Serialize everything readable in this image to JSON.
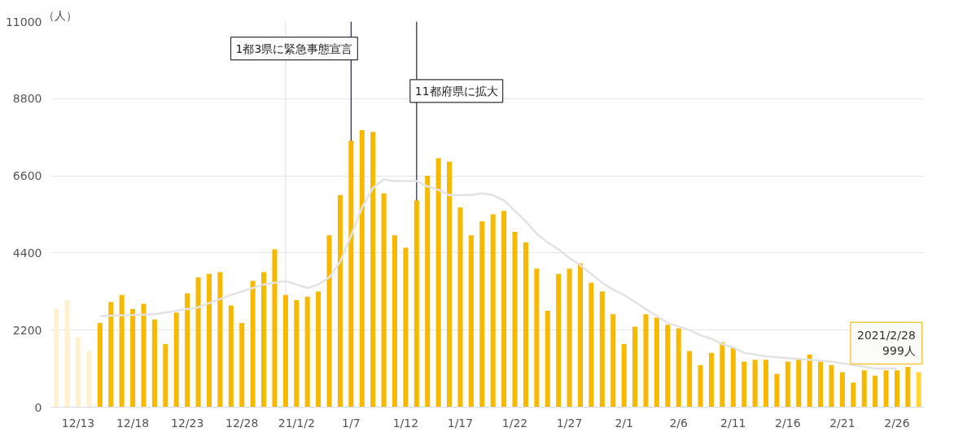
{
  "chart_data": {
    "type": "bar",
    "ylabel": "（人）",
    "x": [
      "2020-12-11",
      "2020-12-12",
      "2020-12-13",
      "2020-12-14",
      "2020-12-15",
      "2020-12-16",
      "2020-12-17",
      "2020-12-18",
      "2020-12-19",
      "2020-12-20",
      "2020-12-21",
      "2020-12-22",
      "2020-12-23",
      "2020-12-24",
      "2020-12-25",
      "2020-12-26",
      "2020-12-27",
      "2020-12-28",
      "2020-12-29",
      "2020-12-30",
      "2020-12-31",
      "2021-01-01",
      "2021-01-02",
      "2021-01-03",
      "2021-01-04",
      "2021-01-05",
      "2021-01-06",
      "2021-01-07",
      "2021-01-08",
      "2021-01-09",
      "2021-01-10",
      "2021-01-11",
      "2021-01-12",
      "2021-01-13",
      "2021-01-14",
      "2021-01-15",
      "2021-01-16",
      "2021-01-17",
      "2021-01-18",
      "2021-01-19",
      "2021-01-20",
      "2021-01-21",
      "2021-01-22",
      "2021-01-23",
      "2021-01-24",
      "2021-01-25",
      "2021-01-26",
      "2021-01-27",
      "2021-01-28",
      "2021-01-29",
      "2021-01-30",
      "2021-01-31",
      "2021-02-01",
      "2021-02-02",
      "2021-02-03",
      "2021-02-04",
      "2021-02-05",
      "2021-02-06",
      "2021-02-07",
      "2021-02-08",
      "2021-02-09",
      "2021-02-10",
      "2021-02-11",
      "2021-02-12",
      "2021-02-13",
      "2021-02-14",
      "2021-02-15",
      "2021-02-16",
      "2021-02-17",
      "2021-02-18",
      "2021-02-19",
      "2021-02-20",
      "2021-02-21",
      "2021-02-22",
      "2021-02-23",
      "2021-02-24",
      "2021-02-25",
      "2021-02-26",
      "2021-02-27",
      "2021-02-28"
    ],
    "series": [
      {
        "colors": [
          "#fdf1cf",
          "#fdf1cf",
          "#fdf1cf",
          "#fdf1cf",
          "#f7b800",
          "#f7b800",
          "#f7b800",
          "#f7b800",
          "#f7b800",
          "#f7b800",
          "#f7b800",
          "#f7b800",
          "#f7b800",
          "#f7b800",
          "#f7b800",
          "#f7b800",
          "#f7b800",
          "#f7b800",
          "#f7b800",
          "#f7b800",
          "#f7b800",
          "#f7b800",
          "#f7b800",
          "#f7b800",
          "#f7b800",
          "#f7b800",
          "#f7b800",
          "#f7b800",
          "#f7b800",
          "#f7b800",
          "#f7b800",
          "#f7b800",
          "#f7b800",
          "#f7b800",
          "#f7b800",
          "#f7b800",
          "#f7b800",
          "#f7b800",
          "#f7b800",
          "#f7b800",
          "#f7b800",
          "#f7b800",
          "#f7b800",
          "#f7b800",
          "#f7b800",
          "#f7b800",
          "#f7b800",
          "#f7b800",
          "#f7b800",
          "#f7b800",
          "#f7b800",
          "#f7b800",
          "#f7b800",
          "#f7b800",
          "#f7b800",
          "#f7b800",
          "#f7b800",
          "#f7b800",
          "#f7b800",
          "#f7b800",
          "#f7b800",
          "#f7b800",
          "#f7b800",
          "#f7b800",
          "#f7b800",
          "#f7b800",
          "#f7b800",
          "#f7b800",
          "#f7b800",
          "#f7b800",
          "#f7b800",
          "#f7b800",
          "#f7b800",
          "#f7b800",
          "#f7b800",
          "#f7b800",
          "#f7b800",
          "#f7b800",
          "#f7b800",
          "#fdd835"
        ],
        "values": [
          2800,
          3050,
          2000,
          1600,
          2400,
          3000,
          3200,
          2800,
          2950,
          2500,
          1800,
          2700,
          3250,
          3700,
          3800,
          3850,
          2900,
          2400,
          3600,
          3850,
          4500,
          3200,
          3050,
          3150,
          3300,
          4900,
          6050,
          7600,
          7900,
          7850,
          6100,
          4900,
          4550,
          5900,
          6600,
          7100,
          7000,
          5700,
          4900,
          5300,
          5500,
          5600,
          5000,
          4700,
          3950,
          2750,
          3800,
          3950,
          4100,
          3550,
          3300,
          2650,
          1800,
          2300,
          2650,
          2550,
          2350,
          2250,
          1600,
          1200,
          1550,
          1850,
          1700,
          1300,
          1350,
          1350,
          950,
          1300,
          1400,
          1500,
          1300,
          1200,
          1000,
          700,
          1050,
          900,
          1050,
          1050,
          1150,
          999
        ]
      },
      {
        "type": "line",
        "color": "#e3e3e3",
        "x": [
          "2020-12-15",
          "2020-12-20",
          "2020-12-24",
          "2020-12-27",
          "2020-12-30",
          "2021-01-01",
          "2021-01-03",
          "2021-01-04",
          "2021-01-05",
          "2021-01-06",
          "2021-01-07",
          "2021-01-08",
          "2021-01-09",
          "2021-01-10",
          "2021-01-11",
          "2021-01-13",
          "2021-01-14",
          "2021-01-15",
          "2021-01-16",
          "2021-01-17",
          "2021-01-18",
          "2021-01-19",
          "2021-01-20",
          "2021-01-21",
          "2021-01-22",
          "2021-01-23",
          "2021-01-24",
          "2021-01-25",
          "2021-01-26",
          "2021-01-27",
          "2021-01-28",
          "2021-01-29",
          "2021-01-30",
          "2021-01-31",
          "2021-02-01",
          "2021-02-02",
          "2021-02-03",
          "2021-02-04",
          "2021-02-05",
          "2021-02-06",
          "2021-02-07",
          "2021-02-08",
          "2021-02-09",
          "2021-02-10",
          "2021-02-11",
          "2021-02-12",
          "2021-02-14",
          "2021-02-16",
          "2021-02-18",
          "2021-02-20",
          "2021-02-22",
          "2021-02-24",
          "2021-02-26"
        ],
        "values": [
          2600,
          2650,
          2850,
          3200,
          3500,
          3600,
          3400,
          3500,
          3700,
          4150,
          4900,
          5700,
          6250,
          6500,
          6450,
          6450,
          6300,
          6200,
          6050,
          6050,
          6050,
          6100,
          6050,
          5900,
          5600,
          5300,
          4950,
          4700,
          4500,
          4250,
          4050,
          3800,
          3550,
          3350,
          3200,
          3000,
          2800,
          2600,
          2400,
          2300,
          2200,
          2050,
          1950,
          1800,
          1700,
          1550,
          1450,
          1400,
          1350,
          1300,
          1200,
          1100,
          1100
        ]
      }
    ],
    "xlim": [
      "2020-12-10T12:00",
      "2021-02-28T12:00"
    ],
    "xticks": [
      {
        "value": "2020-12-13",
        "label": "12/13"
      },
      {
        "value": "2020-12-18",
        "label": "12/18"
      },
      {
        "value": "2020-12-23",
        "label": "12/23"
      },
      {
        "value": "2020-12-28",
        "label": "12/28"
      },
      {
        "value": "2021-01-02",
        "label": "21/1/2"
      },
      {
        "value": "2021-01-07",
        "label": "1/7"
      },
      {
        "value": "2021-01-12",
        "label": "1/12"
      },
      {
        "value": "2021-01-17",
        "label": "1/17"
      },
      {
        "value": "2021-01-22",
        "label": "1/22"
      },
      {
        "value": "2021-01-27",
        "label": "1/27"
      },
      {
        "value": "2021-02-01",
        "label": "2/1"
      },
      {
        "value": "2021-02-06",
        "label": "2/6"
      },
      {
        "value": "2021-02-11",
        "label": "2/11"
      },
      {
        "value": "2021-02-16",
        "label": "2/16"
      },
      {
        "value": "2021-02-21",
        "label": "2/21"
      },
      {
        "value": "2021-02-26",
        "label": "2/26"
      }
    ],
    "ylim": [
      0,
      11000
    ],
    "yticks": [
      0,
      2200,
      4400,
      6600,
      8800,
      11000
    ],
    "grid": "y",
    "ref_lines": [
      {
        "axis": "x",
        "value": "2021-01-01",
        "label": null,
        "color": "#e4e4ee"
      },
      {
        "axis": "x",
        "value": "2021-01-07",
        "label": "1都3県に緊急事態宣言",
        "color": "#1f1f5c"
      },
      {
        "axis": "x",
        "value": "2021-01-13",
        "label": "11都府県に拡大",
        "color": "#1f1f5c"
      }
    ],
    "annotations": [
      {
        "text": "2021/2/28\n999人",
        "x": "2021-02-28",
        "y": 999
      }
    ]
  }
}
